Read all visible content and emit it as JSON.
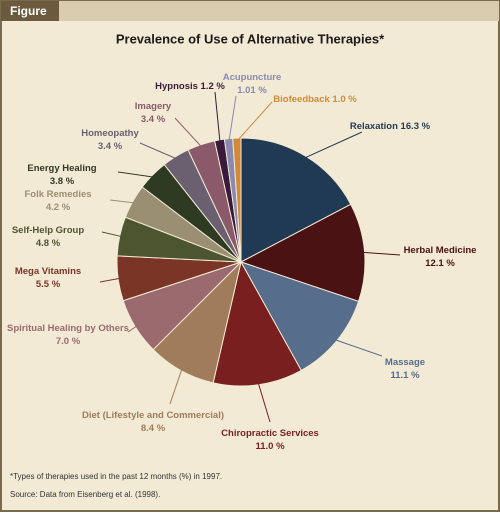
{
  "figure_label": "Figure",
  "chart_data": {
    "type": "pie",
    "title": "Prevalence of Use of Alternative Therapies*",
    "categories": [
      "Relaxation",
      "Herbal Medicine",
      "Massage",
      "Chiropractic Services",
      "Diet (Lifestyle and Commercial)",
      "Spiritual Healing by Others",
      "Mega Vitamins",
      "Self-Help Group",
      "Folk Remedies",
      "Energy Healing",
      "Homeopathy",
      "Imagery",
      "Hypnosis",
      "Acupuncture",
      "Biofeedback"
    ],
    "values": [
      16.3,
      12.1,
      11.1,
      11.0,
      8.4,
      7.0,
      5.5,
      4.8,
      4.2,
      3.8,
      3.4,
      3.4,
      1.2,
      1.01,
      1.0
    ],
    "value_labels": [
      "16.3 %",
      "12.1 %",
      "11.1 %",
      "11.0 %",
      "8.4 %",
      "7.0 %",
      "5.5 %",
      "4.8 %",
      "4.2 %",
      "3.8 %",
      "3.4 %",
      "3.4 %",
      "1.2 %",
      "1.01 %",
      "1.0 %"
    ],
    "colors": [
      "#1f3a52",
      "#4a1212",
      "#566d8c",
      "#7a1f1f",
      "#a07c5a",
      "#9a6a6e",
      "#7a3526",
      "#4d5430",
      "#9a8f73",
      "#2e3a22",
      "#6a6070",
      "#8a5a6a",
      "#3a1a3a",
      "#8a8ab0",
      "#d08a3a"
    ],
    "footnote": "*Types of therapies used in the past 12 months (%) in 1997.",
    "source": "Source: Data from Eisenberg et al. (1998)."
  }
}
